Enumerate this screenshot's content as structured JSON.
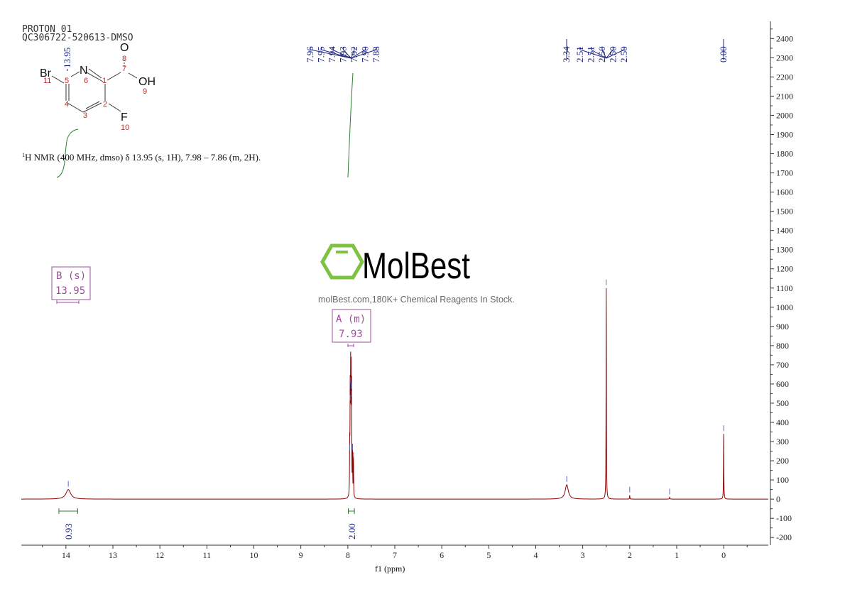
{
  "header": {
    "title_line1": "PROTON 01",
    "title_line2": "QC306722-520613-DMSO"
  },
  "structure": {
    "atoms": [
      "Br",
      "N",
      "O",
      "OH",
      "F"
    ],
    "atom_numbers": [
      "1",
      "2",
      "3",
      "4",
      "5",
      "6",
      "7",
      "8",
      "9",
      "10",
      "11"
    ]
  },
  "nmr_text": {
    "prefix_sup": "1",
    "text": "H NMR (400 MHz, dmso) δ 13.95 (s, 1H), 7.98 – 7.86 (m, 2H)."
  },
  "watermark": {
    "brand": "MolBest",
    "tagline": "molBest.com,180K+ Chemical Reagents In Stock.",
    "logo_color": "#7dc242"
  },
  "multiplets": [
    {
      "label": "B (s)",
      "shift": "13.95"
    },
    {
      "label": "A (m)",
      "shift": "7.93"
    }
  ],
  "colors": {
    "spectrum": "#8b0000",
    "peak_labels": "#1a237e",
    "integral": "#2e7d32",
    "multiplet_box": "#9c4f9c"
  },
  "chart_data": {
    "type": "line",
    "xlabel": "f1 (ppm)",
    "xlim": [
      14.95,
      -0.95
    ],
    "ylim": [
      -240,
      2490
    ],
    "x_reversed": true,
    "x_ticks": [
      "14",
      "13",
      "12",
      "11",
      "10",
      "9",
      "8",
      "7",
      "6",
      "5",
      "4",
      "3",
      "2",
      "1",
      "0"
    ],
    "y_ticks": [
      "2400",
      "2300",
      "2200",
      "2100",
      "2000",
      "1900",
      "1800",
      "1700",
      "1600",
      "1500",
      "1400",
      "1300",
      "1200",
      "1100",
      "1000",
      "900",
      "800",
      "700",
      "600",
      "500",
      "400",
      "300",
      "200",
      "100",
      "0",
      "-100",
      "-200"
    ],
    "y_axis_position": "right",
    "grid": false,
    "peak_labels": [
      {
        "group": "single-13.95",
        "labels": [
          "13.95"
        ]
      },
      {
        "group": "multiplet-7.93",
        "labels": [
          "7.96",
          "7.95",
          "7.94",
          "7.93",
          "7.92",
          "7.90",
          "7.88"
        ]
      },
      {
        "group": "single-3.34",
        "labels": [
          "3.34"
        ]
      },
      {
        "group": "dmso",
        "labels": [
          "2.51",
          "2.51",
          "2.50",
          "2.50",
          "2.50"
        ]
      },
      {
        "group": "tms",
        "labels": [
          "0.00"
        ]
      }
    ],
    "peaks": [
      {
        "ppm": 13.95,
        "height": 50,
        "width": 0.06
      },
      {
        "ppm": 7.96,
        "height": 240,
        "width": 0.004
      },
      {
        "ppm": 7.95,
        "height": 500,
        "width": 0.004
      },
      {
        "ppm": 7.94,
        "height": 590,
        "width": 0.004
      },
      {
        "ppm": 7.93,
        "height": 560,
        "width": 0.004
      },
      {
        "ppm": 7.92,
        "height": 520,
        "width": 0.004
      },
      {
        "ppm": 7.9,
        "height": 240,
        "width": 0.004
      },
      {
        "ppm": 7.88,
        "height": 200,
        "width": 0.004
      },
      {
        "ppm": 3.34,
        "height": 75,
        "width": 0.04
      },
      {
        "ppm": 2.5,
        "height": 1100,
        "width": 0.004
      },
      {
        "ppm": 2.0,
        "height": 20,
        "width": 0.004
      },
      {
        "ppm": 1.15,
        "height": 10,
        "width": 0.006
      },
      {
        "ppm": 0.0,
        "height": 340,
        "width": 0.004
      }
    ],
    "integrals": [
      {
        "ppm_range": [
          14.15,
          13.75
        ],
        "value": "0.93"
      },
      {
        "ppm_range": [
          7.99,
          7.86
        ],
        "value": "2.00"
      }
    ]
  }
}
